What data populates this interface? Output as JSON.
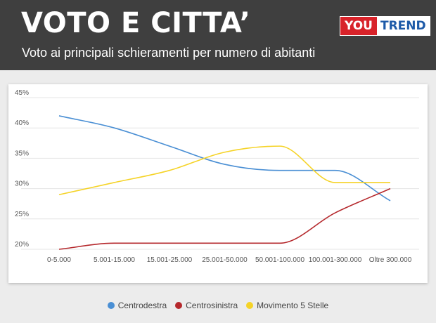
{
  "header": {
    "title": "VOTO E CITTA’",
    "subtitle": "Voto ai principali schieramenti per numero di abitanti",
    "logo_part1": "YOU",
    "logo_part2": "TREND"
  },
  "colors": {
    "header_bg": "#3f3f3f",
    "centrodestra": "#4a8fd4",
    "centrosinistra": "#b5282c",
    "movimento5stelle": "#f5d327",
    "logo_red": "#d8232a",
    "logo_blue": "#1d5aa8"
  },
  "chart_data": {
    "type": "line",
    "categories": [
      "0-5.000",
      "5.001-15.000",
      "15.001-25.000",
      "25.001-50.000",
      "50.001-100.000",
      "100.001-300.000",
      "Oltre 300.000"
    ],
    "series": [
      {
        "name": "Centrodestra",
        "color": "#4a8fd4",
        "values": [
          42,
          40,
          37,
          34,
          33,
          33,
          28
        ]
      },
      {
        "name": "Centrosinistra",
        "color": "#b5282c",
        "values": [
          20,
          21,
          21,
          21,
          21,
          26,
          30
        ]
      },
      {
        "name": "Movimento 5 Stelle",
        "color": "#f5d327",
        "values": [
          29,
          31,
          33,
          36,
          37,
          31,
          31
        ]
      }
    ],
    "yticks": [
      "20%",
      "25%",
      "30%",
      "35%",
      "40%",
      "45%"
    ],
    "ylim": [
      20,
      45
    ],
    "grid": true,
    "legend_position": "bottom"
  }
}
